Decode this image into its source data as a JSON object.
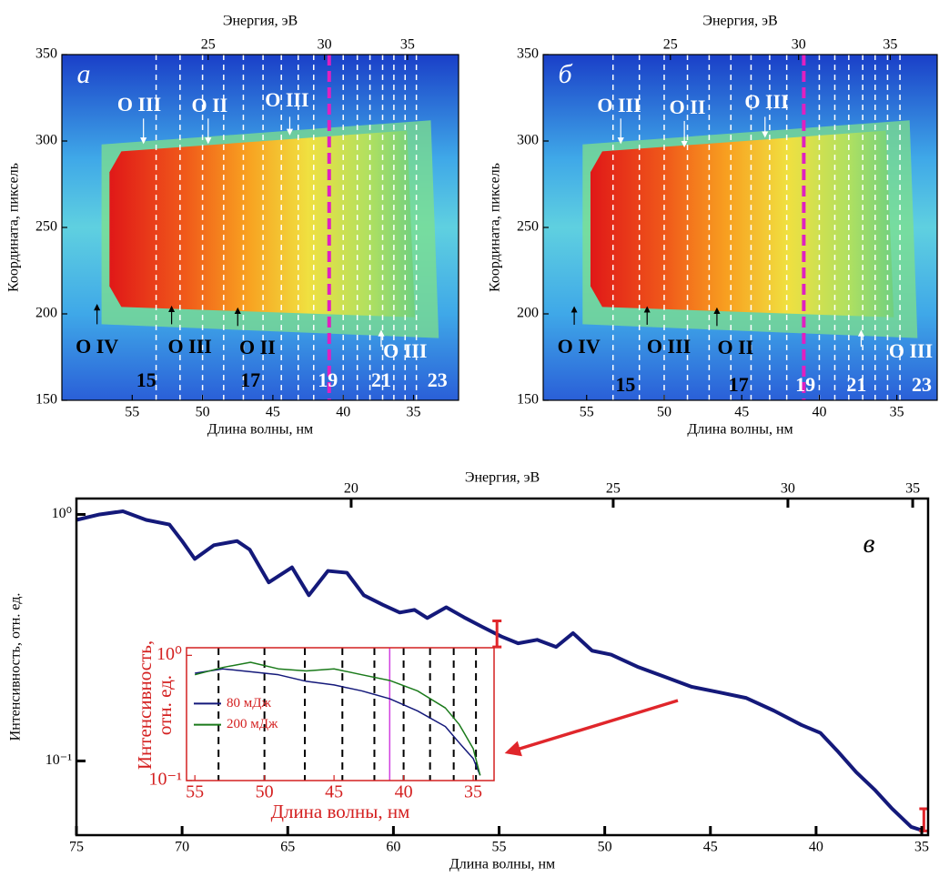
{
  "chart_data": [
    {
      "type": "heatmap",
      "panel_label": "а",
      "xlabel": "Длина волны, нм",
      "ylabel": "Координата, пиксель",
      "x2label": "Энергия, эВ",
      "xlim": [
        60,
        31.8
      ],
      "ylim": [
        150,
        350
      ],
      "xticks": [
        55,
        50,
        45,
        40,
        35
      ],
      "yticks": [
        150,
        200,
        250,
        300,
        350
      ],
      "x2ticks": [
        25,
        30,
        35
      ],
      "x2scale": {
        "type": "reciprocal",
        "k": 1240
      },
      "dashed_lines": [
        53.3,
        51.6,
        50.0,
        48.5,
        47.1,
        45.7,
        44.4,
        43.2,
        42.1,
        40.0,
        39.0,
        38.1,
        37.2,
        36.4,
        35.6,
        34.8
      ],
      "dashed_color": "#ffffff",
      "highlight_line": 41.0,
      "highlight_color": "#e020c0",
      "annotations": [
        {
          "text": "O III",
          "x": 54.5,
          "y": 320,
          "color": "#ffffff",
          "arrow": [
            54.2,
            313,
            54.2,
            299
          ]
        },
        {
          "text": "O II",
          "x": 49.5,
          "y": 319.5,
          "color": "#ffffff",
          "arrow": [
            49.6,
            313,
            49.6,
            299
          ]
        },
        {
          "text": "O III",
          "x": 44.0,
          "y": 322.6,
          "color": "#ffffff",
          "arrow": [
            43.8,
            314,
            43.8,
            304
          ]
        },
        {
          "text": "O IV",
          "x": 57.5,
          "y": 180,
          "color": "#000000",
          "arrow": [
            57.5,
            194,
            57.5,
            205
          ]
        },
        {
          "text": "O III",
          "x": 50.9,
          "y": 180,
          "color": "#000000",
          "arrow": [
            52.2,
            194,
            52.2,
            204
          ]
        },
        {
          "text": "O II",
          "x": 46.1,
          "y": 179.5,
          "color": "#000000",
          "arrow": [
            47.5,
            193,
            47.5,
            203
          ]
        },
        {
          "text": "O III",
          "x": 35.6,
          "y": 177.5,
          "color": "#ffffff",
          "arrow": [
            37.3,
            181,
            37.3,
            190
          ]
        },
        {
          "text": "15",
          "x": 54.0,
          "y": 160.5,
          "color": "#000000"
        },
        {
          "text": "17",
          "x": 46.6,
          "y": 160.5,
          "color": "#000000"
        },
        {
          "text": "19",
          "x": 41.1,
          "y": 160.5,
          "color": "#ffffff"
        },
        {
          "text": "21",
          "x": 37.3,
          "y": 160.5,
          "color": "#ffffff"
        },
        {
          "text": "23",
          "x": 33.3,
          "y": 160.5,
          "color": "#ffffff"
        }
      ]
    },
    {
      "type": "heatmap",
      "panel_label": "б",
      "xlabel": "Длина волны, нм",
      "ylabel": "Координата, пиксель",
      "x2label": "Энергия, эВ",
      "xlim": [
        57.8,
        32.4
      ],
      "ylim": [
        150,
        350
      ],
      "xticks": [
        55,
        50,
        45,
        40,
        35
      ],
      "yticks": [
        150,
        200,
        250,
        300,
        350
      ],
      "x2ticks": [
        25,
        30,
        35
      ],
      "x2scale": {
        "type": "reciprocal",
        "k": 1240
      },
      "dashed_lines": [
        53.3,
        51.6,
        50.0,
        48.5,
        47.1,
        45.7,
        44.4,
        43.2,
        42.1,
        40.0,
        39.0,
        38.1,
        37.2,
        36.4,
        35.6,
        34.8
      ],
      "dashed_color": "#ffffff",
      "highlight_line": 41.0,
      "highlight_color": "#e020c0",
      "annotations": [
        {
          "text": "O III",
          "x": 52.9,
          "y": 319.5,
          "color": "#ffffff",
          "arrow": [
            52.8,
            313,
            52.8,
            299
          ]
        },
        {
          "text": "O II",
          "x": 48.5,
          "y": 318.4,
          "color": "#ffffff",
          "arrow": [
            48.7,
            311.6,
            48.7,
            297
          ]
        },
        {
          "text": "O III",
          "x": 43.4,
          "y": 321.6,
          "color": "#ffffff",
          "arrow": [
            43.5,
            314,
            43.5,
            302.6
          ]
        },
        {
          "text": "O IV",
          "x": 55.5,
          "y": 180,
          "color": "#000000",
          "arrow": [
            55.8,
            193.7,
            55.8,
            203.7
          ]
        },
        {
          "text": "O III",
          "x": 49.7,
          "y": 180,
          "color": "#000000",
          "arrow": [
            51.1,
            193.7,
            51.1,
            203.7
          ]
        },
        {
          "text": "O II",
          "x": 45.4,
          "y": 179.5,
          "color": "#000000",
          "arrow": [
            46.6,
            193,
            46.6,
            203
          ]
        },
        {
          "text": "O III",
          "x": 34.1,
          "y": 177.5,
          "color": "#ffffff",
          "arrow": [
            37.3,
            181,
            37.3,
            190
          ]
        },
        {
          "text": "15",
          "x": 52.5,
          "y": 158,
          "color": "#000000"
        },
        {
          "text": "17",
          "x": 45.2,
          "y": 158,
          "color": "#000000"
        },
        {
          "text": "19",
          "x": 40.9,
          "y": 158,
          "color": "#ffffff"
        },
        {
          "text": "21",
          "x": 37.6,
          "y": 158,
          "color": "#ffffff"
        },
        {
          "text": "23",
          "x": 33.4,
          "y": 158,
          "color": "#ffffff"
        }
      ]
    },
    {
      "type": "line",
      "panel_label": "в",
      "xlabel": "Длина волны, нм",
      "ylabel": "Интенсивность, отн. ед.",
      "x2label": "Энергия, эВ",
      "xlim": [
        75,
        34.7
      ],
      "ylim": [
        0.05,
        1.16
      ],
      "yscale": "log",
      "xticks": [
        75,
        70,
        65,
        60,
        55,
        50,
        45,
        40,
        35
      ],
      "yticks": [
        {
          "value": 1,
          "label": "10⁰"
        },
        {
          "value": 0.1,
          "label": "10⁻¹"
        }
      ],
      "x2ticks": [
        20,
        25,
        30,
        35
      ],
      "x2scale": {
        "type": "reciprocal",
        "k": 1240
      },
      "x": [
        75,
        73.9,
        72.8,
        71.7,
        70.6,
        70.0,
        69.4,
        68.5,
        67.4,
        66.8,
        65.9,
        64.8,
        64.0,
        63.1,
        62.2,
        61.4,
        60.5,
        59.7,
        59.0,
        58.4,
        57.5,
        56.6,
        55.8,
        54.9,
        54.1,
        53.2,
        52.3,
        51.5,
        50.6,
        49.7,
        48.4,
        47.2,
        45.9,
        44.6,
        43.3,
        42.0,
        40.7,
        39.8,
        39.0,
        38.1,
        37.2,
        36.4,
        35.5,
        34.9
      ],
      "series": [
        {
          "color": "#14197a",
          "values": [
            0.95,
            1.0,
            1.03,
            0.95,
            0.91,
            0.78,
            0.66,
            0.75,
            0.78,
            0.72,
            0.53,
            0.61,
            0.47,
            0.59,
            0.58,
            0.47,
            0.43,
            0.4,
            0.41,
            0.38,
            0.42,
            0.38,
            0.35,
            0.32,
            0.3,
            0.31,
            0.29,
            0.33,
            0.28,
            0.27,
            0.24,
            0.22,
            0.2,
            0.19,
            0.18,
            0.16,
            0.14,
            0.13,
            0.11,
            0.09,
            0.076,
            0.064,
            0.054,
            0.052
          ]
        }
      ],
      "error_bars": {
        "x": [
          55.1,
          34.9
        ],
        "y": [
          0.33,
          0.058
        ],
        "yerr": [
          0.04,
          0.006
        ],
        "color": "#e0262b"
      }
    },
    {
      "type": "line",
      "xlabel": "Длина волны, нм",
      "ylabel": [
        "Интенсивность,",
        "отн. ед."
      ],
      "axis_color": "#d42020",
      "xlim": [
        55.6,
        33.5
      ],
      "ylim": [
        0.1,
        1.15
      ],
      "yscale": "log",
      "xticks": [
        55,
        50,
        45,
        40,
        35
      ],
      "yticks": [
        {
          "value": 1,
          "label": "10⁰"
        },
        {
          "value": 0.1,
          "label": "10⁻¹"
        }
      ],
      "dashed_lines": [
        53.3,
        50.0,
        47.1,
        44.4,
        42.1,
        40.0,
        38.1,
        36.4,
        34.8
      ],
      "dashed_color": "#000000",
      "highlight_line": 41.0,
      "highlight_color": "#d040e0",
      "legend": "center left",
      "x": [
        55,
        53,
        51,
        49,
        47,
        45,
        43,
        41,
        39,
        37,
        36,
        35,
        34.5
      ],
      "series": [
        {
          "name": "80 мДж",
          "color": "#14197a",
          "values": [
            0.72,
            0.78,
            0.74,
            0.7,
            0.62,
            0.58,
            0.52,
            0.45,
            0.36,
            0.27,
            0.2,
            0.15,
            0.11
          ]
        },
        {
          "name": "200 мДж",
          "color": "#1a7a1a",
          "values": [
            0.7,
            0.8,
            0.88,
            0.78,
            0.75,
            0.78,
            0.7,
            0.63,
            0.52,
            0.38,
            0.28,
            0.18,
            0.11
          ]
        }
      ]
    }
  ]
}
